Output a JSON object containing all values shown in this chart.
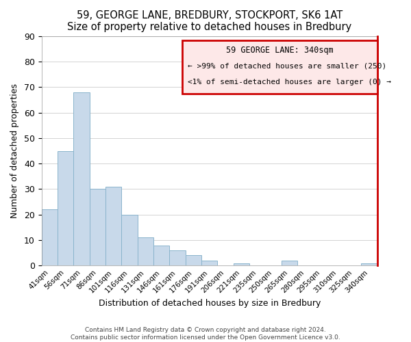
{
  "title": "59, GEORGE LANE, BREDBURY, STOCKPORT, SK6 1AT",
  "subtitle": "Size of property relative to detached houses in Bredbury",
  "xlabel": "Distribution of detached houses by size in Bredbury",
  "ylabel": "Number of detached properties",
  "bar_color": "#c8d9ea",
  "bar_edge_color": "#8ab4cc",
  "categories": [
    "41sqm",
    "56sqm",
    "71sqm",
    "86sqm",
    "101sqm",
    "116sqm",
    "131sqm",
    "146sqm",
    "161sqm",
    "176sqm",
    "191sqm",
    "206sqm",
    "221sqm",
    "235sqm",
    "250sqm",
    "265sqm",
    "280sqm",
    "295sqm",
    "310sqm",
    "325sqm",
    "340sqm"
  ],
  "values": [
    22,
    45,
    68,
    30,
    31,
    20,
    11,
    8,
    6,
    4,
    2,
    0,
    1,
    0,
    0,
    2,
    0,
    0,
    0,
    0,
    1
  ],
  "ylim": [
    0,
    90
  ],
  "yticks": [
    0,
    10,
    20,
    30,
    40,
    50,
    60,
    70,
    80,
    90
  ],
  "legend_title": "59 GEORGE LANE: 340sqm",
  "legend_line1": "← >99% of detached houses are smaller (250)",
  "legend_line2": "<1% of semi-detached houses are larger (0) →",
  "legend_box_facecolor": "#fde8e8",
  "legend_box_edge_color": "#cc0000",
  "footer_line1": "Contains HM Land Registry data © Crown copyright and database right 2024.",
  "footer_line2": "Contains public sector information licensed under the Open Government Licence v3.0.",
  "highlight_bar_index": 20
}
